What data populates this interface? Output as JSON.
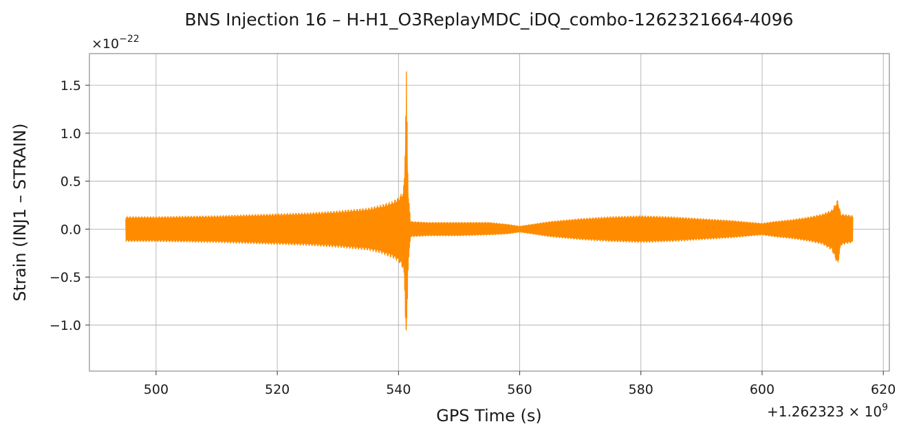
{
  "chart_data": {
    "type": "line",
    "title": "BNS Injection 16 – H-H1_O3ReplayMDC_iDQ_combo-1262321664-4096",
    "xlabel": "GPS Time (s)",
    "ylabel": "Strain (INJ1 – STRAIN)",
    "y_scale_base": "×10",
    "y_scale_exponent": "−22",
    "x_offset_prefix": "+1.262323 × 10",
    "x_offset_exponent": "9",
    "xlim": [
      489,
      621
    ],
    "ylim": [
      -1.48,
      1.83
    ],
    "grid": true,
    "x_ticks": [
      {
        "value": 500,
        "label": "500"
      },
      {
        "value": 520,
        "label": "520"
      },
      {
        "value": 540,
        "label": "540"
      },
      {
        "value": 560,
        "label": "560"
      },
      {
        "value": 580,
        "label": "580"
      },
      {
        "value": 600,
        "label": "600"
      },
      {
        "value": 620,
        "label": "620"
      }
    ],
    "y_ticks": [
      {
        "value": 1.5,
        "label": "1.5"
      },
      {
        "value": 1.0,
        "label": "1.0"
      },
      {
        "value": 0.5,
        "label": "0.5"
      },
      {
        "value": 0.0,
        "label": "0.0"
      },
      {
        "value": -0.5,
        "label": "−0.5"
      },
      {
        "value": -1.0,
        "label": "−1.0"
      }
    ],
    "series": [
      {
        "color": "#ff8c00",
        "x_start": 495.0,
        "x_end": 615.0,
        "envelope": {
          "x": [
            495.0,
            500.0,
            510.0,
            520.0,
            525.0,
            530.0,
            535.0,
            537.0,
            539.0,
            540.0,
            540.8,
            541.0,
            541.3,
            541.6,
            542.0,
            545.0,
            550.0,
            555.0,
            558.0,
            560.0,
            562.0,
            565.0,
            570.0,
            575.0,
            580.0,
            585.0,
            590.0,
            595.0,
            600.0,
            602.0,
            605.0,
            608.0,
            610.0,
            611.5,
            612.5,
            613.0,
            614.0,
            615.0
          ],
          "upper": [
            0.13,
            0.13,
            0.14,
            0.16,
            0.17,
            0.19,
            0.22,
            0.25,
            0.29,
            0.33,
            0.4,
            0.6,
            1.68,
            0.4,
            0.08,
            0.07,
            0.07,
            0.07,
            0.05,
            0.03,
            0.05,
            0.08,
            0.11,
            0.13,
            0.14,
            0.13,
            0.11,
            0.09,
            0.06,
            0.08,
            0.1,
            0.13,
            0.16,
            0.2,
            0.31,
            0.16,
            0.15,
            0.14
          ],
          "lower": [
            -0.13,
            -0.13,
            -0.14,
            -0.16,
            -0.17,
            -0.19,
            -0.22,
            -0.25,
            -0.3,
            -0.34,
            -0.42,
            -0.6,
            -1.32,
            -0.4,
            -0.08,
            -0.07,
            -0.07,
            -0.06,
            -0.05,
            -0.03,
            -0.05,
            -0.08,
            -0.11,
            -0.13,
            -0.14,
            -0.13,
            -0.11,
            -0.09,
            -0.06,
            -0.08,
            -0.1,
            -0.13,
            -0.16,
            -0.22,
            -0.38,
            -0.17,
            -0.15,
            -0.14
          ]
        }
      }
    ]
  }
}
